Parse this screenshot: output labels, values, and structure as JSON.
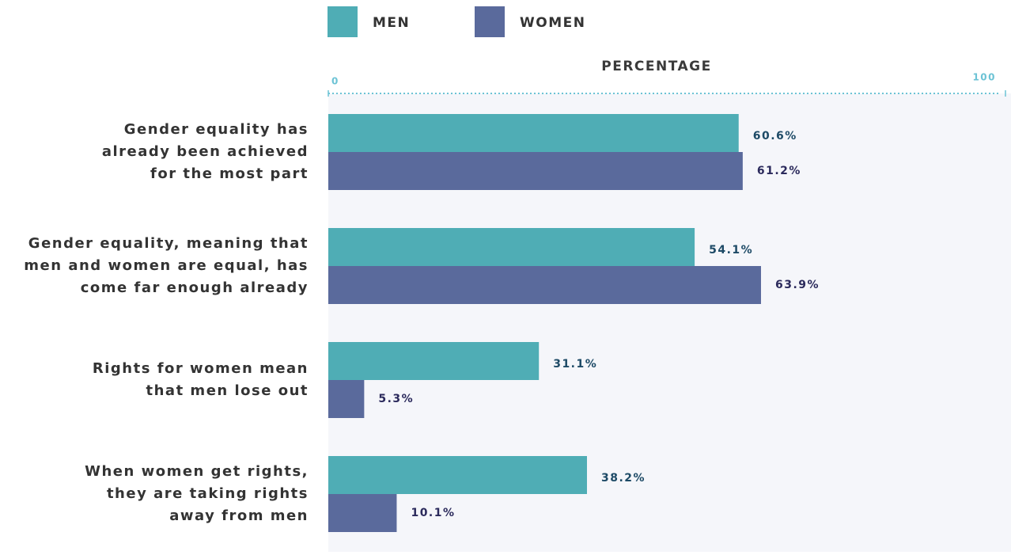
{
  "chart_data": {
    "type": "bar",
    "orientation": "horizontal",
    "xlabel": "PERCENTAGE",
    "categories": [
      [
        "Gender equality has",
        "already been achieved",
        "for the most part"
      ],
      [
        "Gender equality, meaning that",
        "men and women are equal, has",
        "come far enough already"
      ],
      [
        "Rights for women mean",
        "that men lose out"
      ],
      [
        "When women get rights,",
        "they are taking rights",
        "away from men"
      ]
    ],
    "series": [
      {
        "name": "MEN",
        "color": "#4fadb5",
        "label_color": "#1d4a66",
        "values": [
          60.6,
          54.1,
          31.1,
          38.2
        ],
        "value_labels": [
          "60.6%",
          "54.1%",
          "31.1%",
          "38.2%"
        ]
      },
      {
        "name": "WOMEN",
        "color": "#5a6a9c",
        "label_color": "#2b2a5c",
        "values": [
          61.2,
          63.9,
          5.3,
          10.1
        ],
        "value_labels": [
          "61.2%",
          "63.9%",
          "5.3%",
          "10.1%"
        ]
      }
    ],
    "xlim": [
      0,
      100
    ],
    "xticks": [
      0,
      100
    ]
  }
}
